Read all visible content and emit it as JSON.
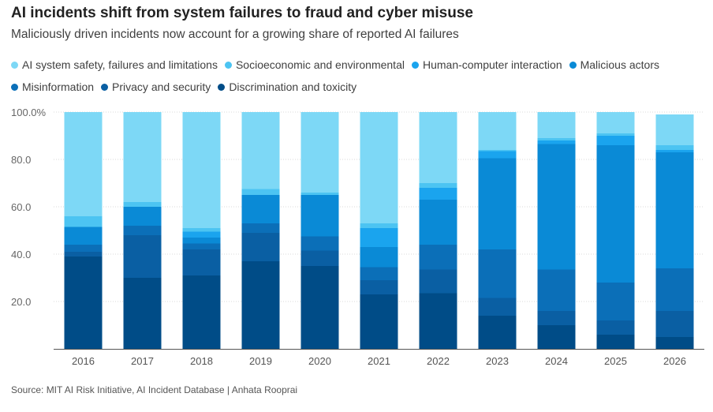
{
  "title": "AI incidents shift from system failures to fraud and cyber misuse",
  "subtitle": "Maliciously driven incidents now account for a growing share of reported AI failures",
  "source": "Source: MIT AI Risk Initiative, AI Incident Database | Anhata Rooprai",
  "chart_data": {
    "type": "bar",
    "stacked": true,
    "categories": [
      "2016",
      "2017",
      "2018",
      "2019",
      "2020",
      "2021",
      "2022",
      "2023",
      "2024",
      "2025",
      "2026"
    ],
    "ylim": [
      0,
      100
    ],
    "yticks": [
      "20.0",
      "40.0",
      "60.0",
      "80.0",
      "100.0%"
    ],
    "ytick_values": [
      20,
      40,
      60,
      80,
      100
    ],
    "grid": true,
    "legend_position": "top",
    "series": [
      {
        "name": "Discrimination and toxicity",
        "color": "#004c87",
        "values": [
          39,
          30,
          31,
          37,
          35,
          23,
          23.5,
          14,
          10,
          6,
          5
        ]
      },
      {
        "name": "Privacy and security",
        "color": "#0a5fa3",
        "values": [
          2,
          18,
          11,
          12,
          6.5,
          6,
          10,
          7.5,
          6,
          6,
          11
        ]
      },
      {
        "name": "Misinformation",
        "color": "#0b6fb8",
        "values": [
          3,
          4,
          2.5,
          4,
          6,
          5.5,
          10.5,
          20.5,
          17.5,
          16,
          18
        ]
      },
      {
        "name": "Malicious actors",
        "color": "#0a8ad6",
        "values": [
          7.5,
          8,
          2.5,
          12,
          17.5,
          8.5,
          19,
          38.5,
          53,
          58,
          49
        ]
      },
      {
        "name": "Human-computer interaction",
        "color": "#1aa4ee",
        "values": [
          0,
          0,
          2.5,
          0,
          0,
          8,
          5,
          3,
          1.5,
          4,
          1
        ]
      },
      {
        "name": "Socioeconomic and environmental",
        "color": "#4cc4f2",
        "values": [
          4.5,
          2,
          1.5,
          2.5,
          1,
          2,
          2,
          0.5,
          1,
          1,
          2
        ]
      },
      {
        "name": "AI system safety, failures and limitations",
        "color": "#7dd8f6",
        "values": [
          44,
          38,
          49,
          32.5,
          34,
          47,
          30,
          16,
          11,
          9,
          13
        ]
      }
    ]
  },
  "legend": {
    "rows": [
      [
        "AI system safety, failures and limitations",
        "Socioeconomic and environmental",
        "Human-computer interaction",
        "Malicious actors"
      ],
      [
        "Misinformation",
        "Privacy and security",
        "Discrimination and toxicity"
      ]
    ]
  }
}
